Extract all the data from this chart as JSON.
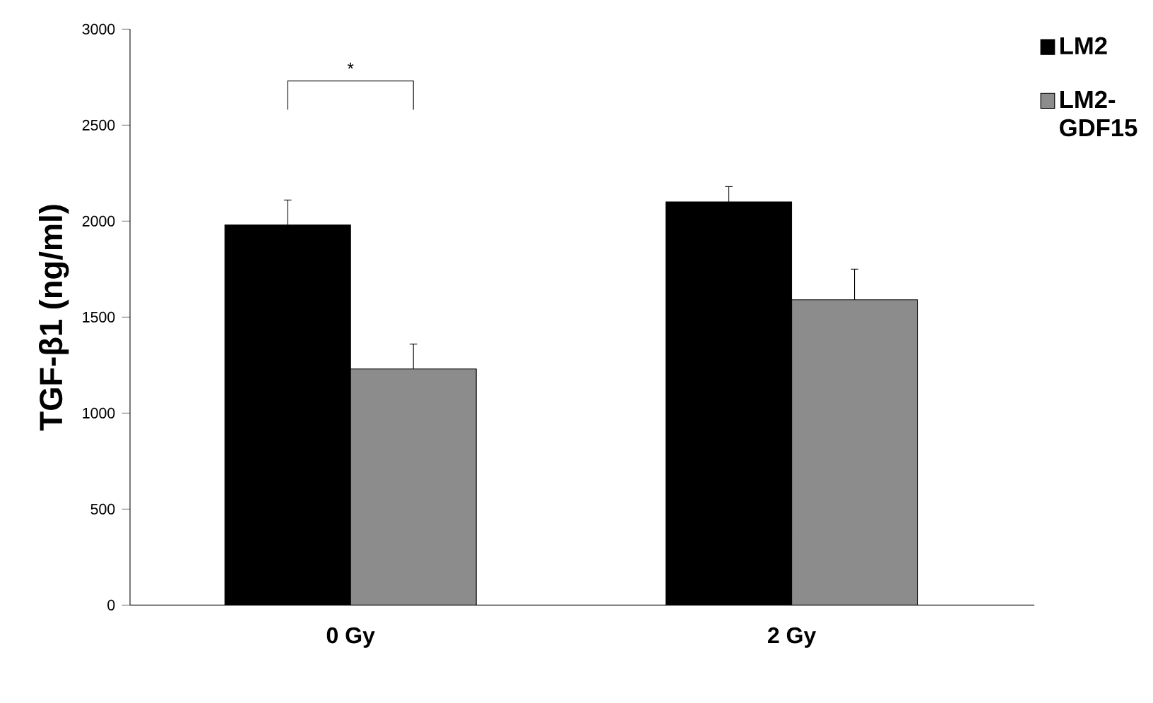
{
  "chart_data": {
    "type": "bar",
    "ylabel": "TGF-β1 (ng/ml)",
    "categories": [
      "0 Gy",
      "2 Gy"
    ],
    "series": [
      {
        "name": "LM2",
        "color": "#000000",
        "values": [
          1980,
          2100
        ],
        "errors": [
          130,
          80
        ]
      },
      {
        "name": "LM2-GDF15",
        "color": "#8c8c8c",
        "values": [
          1230,
          1590
        ],
        "errors": [
          130,
          160
        ]
      }
    ],
    "ylim": [
      0,
      3000
    ],
    "yticks": [
      0,
      500,
      1000,
      1500,
      2000,
      2500,
      3000
    ],
    "annotations": [
      "*"
    ],
    "legend": "top right",
    "grid": false
  }
}
